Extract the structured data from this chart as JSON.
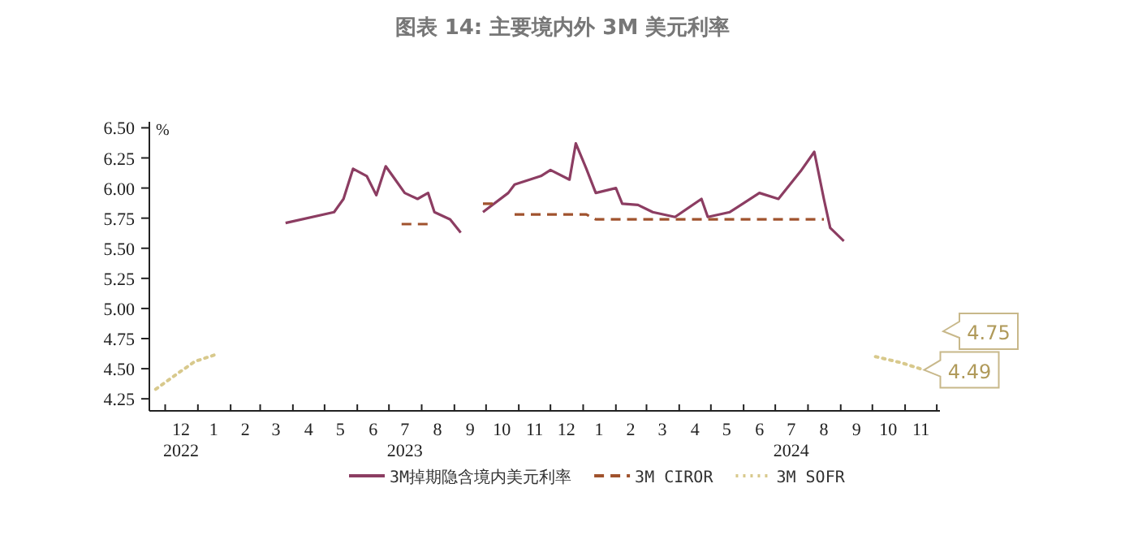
{
  "chart_data": {
    "type": "line",
    "title": "图表 14: 主要境内外 3M 美元利率",
    "ylabel": "%",
    "xlim": [
      "2022-11-16",
      "2024-12-04"
    ],
    "ylim": [
      4.15,
      6.55
    ],
    "yticks": [
      {
        "value": 4.25,
        "label": "4.25"
      },
      {
        "value": 4.5,
        "label": "4.50"
      },
      {
        "value": 4.75,
        "label": "4.75"
      },
      {
        "value": 5,
        "label": "5.00"
      },
      {
        "value": 5.25,
        "label": "5.25"
      },
      {
        "value": 5.5,
        "label": "5.50"
      },
      {
        "value": 5.75,
        "label": "5.75"
      },
      {
        "value": 6,
        "label": "6.00"
      },
      {
        "value": 6.25,
        "label": "6.25"
      },
      {
        "value": 6.5,
        "label": "6.50"
      }
    ],
    "xticks": [
      {
        "value": "2022-12-01",
        "label": null
      },
      {
        "value": "2023-01-01",
        "label": null
      },
      {
        "value": "2023-02-01",
        "label": null
      },
      {
        "value": "2023-03-01",
        "label": null
      },
      {
        "value": "2023-04-01",
        "label": null
      },
      {
        "value": "2023-05-01",
        "label": null
      },
      {
        "value": "2023-06-01",
        "label": null
      },
      {
        "value": "2023-07-01",
        "label": null
      },
      {
        "value": "2023-08-01",
        "label": null
      },
      {
        "value": "2023-09-01",
        "label": null
      },
      {
        "value": "2023-10-01",
        "label": null
      },
      {
        "value": "2023-11-01",
        "label": null
      },
      {
        "value": "2023-12-01",
        "label": null
      },
      {
        "value": "2024-01-01",
        "label": null
      },
      {
        "value": "2024-02-01",
        "label": null
      },
      {
        "value": "2024-03-01",
        "label": null
      },
      {
        "value": "2024-04-01",
        "label": null
      },
      {
        "value": "2024-05-01",
        "label": null
      },
      {
        "value": "2024-06-01",
        "label": null
      },
      {
        "value": "2024-07-01",
        "label": null
      },
      {
        "value": "2024-08-01",
        "label": null
      },
      {
        "value": "2024-09-01",
        "label": null
      },
      {
        "value": "2024-10-01",
        "label": null
      },
      {
        "value": "2024-11-01",
        "label": null
      },
      {
        "value": "2024-12-01",
        "label": null
      },
      {
        "value": "2022-12-16",
        "label": "12\n2022"
      },
      {
        "value": "2023-01-16",
        "label": "1"
      },
      {
        "value": "2023-02-15",
        "label": "2"
      },
      {
        "value": "2023-03-16",
        "label": "3"
      },
      {
        "value": "2023-04-16",
        "label": "4"
      },
      {
        "value": "2023-05-16",
        "label": "5"
      },
      {
        "value": "2023-06-16",
        "label": "6"
      },
      {
        "value": "2023-07-16",
        "label": "7\n2023"
      },
      {
        "value": "2023-08-16",
        "label": "8"
      },
      {
        "value": "2023-09-16",
        "label": "9"
      },
      {
        "value": "2023-10-16",
        "label": "10"
      },
      {
        "value": "2023-11-16",
        "label": "11"
      },
      {
        "value": "2023-12-16",
        "label": "12"
      },
      {
        "value": "2024-01-16",
        "label": "1"
      },
      {
        "value": "2024-02-15",
        "label": "2"
      },
      {
        "value": "2024-03-16",
        "label": "3"
      },
      {
        "value": "2024-04-16",
        "label": "4"
      },
      {
        "value": "2024-05-16",
        "label": "5"
      },
      {
        "value": "2024-06-16",
        "label": "6"
      },
      {
        "value": "2024-07-16",
        "label": "7\n2024"
      },
      {
        "value": "2024-08-16",
        "label": "8"
      },
      {
        "value": "2024-09-16",
        "label": "9"
      },
      {
        "value": "2024-10-16",
        "label": "10"
      },
      {
        "value": "2024-11-16",
        "label": "11"
      }
    ],
    "legend": "bottom",
    "series": [
      {
        "name": "3M掉期隐含境内美元利率",
        "color": "#8c3d62",
        "line_style": "solid",
        "x": [
          "2023-03-25",
          "2023-05-10",
          "2023-05-19",
          "2023-05-28",
          "2023-06-10",
          "2023-06-19",
          "2023-06-28",
          "2023-07-07",
          "2023-07-16",
          "2023-07-28",
          "2023-08-07",
          "2023-08-13",
          "2023-08-28",
          "2023-09-07",
          "2023-09-16",
          "2023-09-28",
          "2023-10-22",
          "2023-10-28",
          "2023-11-22",
          "2023-12-01",
          "2023-12-19",
          "2023-12-25",
          "2024-01-04",
          "2024-01-13",
          "2024-02-01",
          "2024-02-07",
          "2024-02-22",
          "2024-03-07",
          "2024-03-28",
          "2024-04-22",
          "2024-04-28",
          "2024-05-19",
          "2024-06-16",
          "2024-07-04",
          "2024-07-25",
          "2024-08-07",
          "2024-08-16",
          "2024-08-22",
          "2024-09-04"
        ],
        "values": [
          5.71,
          5.8,
          5.91,
          6.16,
          6.1,
          5.94,
          6.18,
          6.07,
          5.96,
          5.91,
          5.96,
          5.8,
          5.74,
          5.63,
          null,
          5.8,
          5.96,
          6.03,
          6.1,
          6.15,
          6.07,
          6.37,
          6.16,
          5.96,
          6.0,
          5.87,
          5.86,
          5.8,
          5.76,
          5.91,
          5.76,
          5.8,
          5.96,
          5.91,
          6.14,
          6.3,
          5.91,
          5.67,
          5.56
        ]
      },
      {
        "name": "3M CIROR",
        "color": "#a0522d",
        "line_style": "dashed",
        "x": [
          "2023-07-13",
          "2023-08-07",
          "2023-08-16",
          "2023-09-28",
          "2023-10-13",
          "2023-10-19",
          "2023-10-28",
          "2024-01-04",
          "2024-01-13",
          "2024-08-16"
        ],
        "values": [
          5.7,
          5.7,
          null,
          5.87,
          5.87,
          null,
          5.78,
          5.78,
          5.74,
          5.74
        ]
      },
      {
        "name": "3M SOFR",
        "color": "#d8c98c",
        "line_style": "dotted",
        "x": [
          "2022-11-22",
          "2022-12-11",
          "2022-12-29",
          "2023-01-19",
          "2023-05-16",
          "2024-10-04",
          "2024-10-28",
          "2024-11-19"
        ],
        "values": [
          4.33,
          4.45,
          4.56,
          4.62,
          null,
          4.6,
          4.55,
          4.49
        ]
      }
    ],
    "annotations": [
      "4.75",
      {
        "text": "4.49",
        "x": "2024-11-19",
        "y": 4.49
      }
    ]
  }
}
